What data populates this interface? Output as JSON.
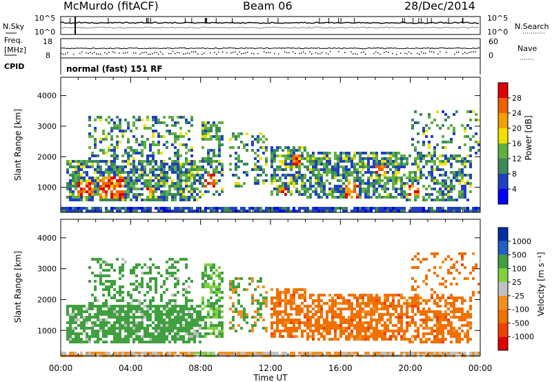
{
  "header": {
    "station": "McMurdo (fitACF)",
    "beam": "Beam 06",
    "date": "28/Dec/2014"
  },
  "noise_panel": {
    "left_label": "N.Sky",
    "right_label": "N.Search",
    "left_ticks": [
      "10^5",
      "10^0"
    ],
    "right_ticks": [
      "10^5",
      "10^0"
    ]
  },
  "freq_panel": {
    "left_label_1": "Freq.",
    "left_label_2": "[MHz]",
    "right_label": "Nave",
    "left_ticks": [
      "18",
      "8"
    ],
    "right_ticks": [
      "60",
      "0"
    ]
  },
  "cpid_panel": {
    "label": "CPID",
    "text": "normal (fast) 151 RF"
  },
  "colors": {
    "power_scale": [
      "#0000ff",
      "#2040c0",
      "#3a8a5a",
      "#60b040",
      "#f0e000",
      "#f0a000",
      "#f06000",
      "#e00000"
    ],
    "velocity_scale": [
      "#e00000",
      "#f04000",
      "#f07000",
      "#f09020",
      "#c0c0c0",
      "#80d040",
      "#40a040",
      "#2060c0",
      "#0030a0"
    ]
  },
  "chart_data": [
    {
      "type": "heatmap",
      "name": "power",
      "ylabel": "Slant Range [km]",
      "yticks": [
        1000,
        2000,
        3000,
        4000
      ],
      "ylim": [
        180,
        4600
      ],
      "xlim_hours": [
        0,
        24
      ],
      "xticks": [
        "00:00",
        "04:00",
        "08:00",
        "12:00",
        "16:00",
        "20:00",
        "00:00"
      ],
      "colorbar": {
        "label": "Power [dB]",
        "ticks": [
          "28",
          "24",
          "20",
          "16",
          "12",
          "8",
          "4"
        ],
        "range": [
          0,
          30
        ]
      }
    },
    {
      "type": "heatmap",
      "name": "velocity",
      "ylabel": "Slant Range [km]",
      "yticks": [
        1000,
        2000,
        3000,
        4000
      ],
      "ylim": [
        180,
        4600
      ],
      "xlim_hours": [
        0,
        24
      ],
      "xticks": [
        "00:00",
        "04:00",
        "08:00",
        "12:00",
        "16:00",
        "20:00",
        "00:00"
      ],
      "xlabel": "Time UT",
      "colorbar": {
        "label": "Velocity [m s⁻¹]",
        "ticks": [
          "1000",
          "500",
          "100",
          "25",
          "-25",
          "-100",
          "-500",
          "-1000"
        ]
      }
    }
  ]
}
